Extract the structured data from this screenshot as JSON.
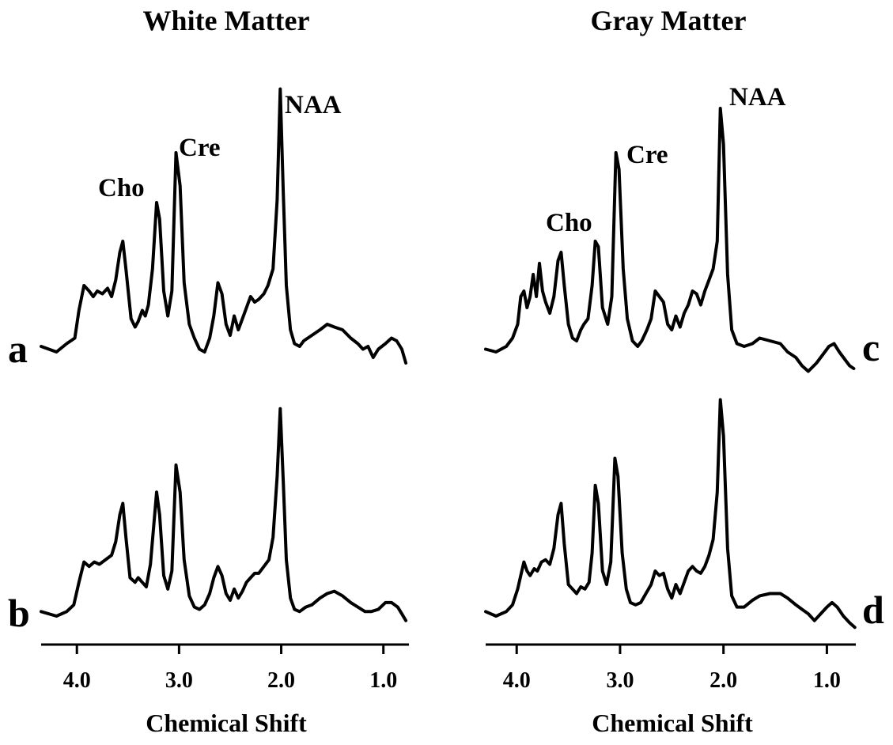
{
  "chart_data": {
    "type": "line",
    "x_reversed": true,
    "grid": false,
    "columns": [
      {
        "title": "White Matter",
        "xlabel": "Chemical Shift",
        "xlim": [
          4.35,
          0.75
        ],
        "xticks": [
          "4.0",
          "3.0",
          "2.0",
          "1.0"
        ],
        "xtick_values": [
          4.0,
          3.0,
          2.0,
          1.0
        ]
      },
      {
        "title": "Gray Matter",
        "xlabel": "Chemical Shift",
        "xlim": [
          4.3,
          0.72
        ],
        "xticks": [
          "4.0",
          "3.0",
          "2.0",
          "1.0"
        ],
        "xtick_values": [
          4.0,
          3.0,
          2.0,
          1.0
        ]
      }
    ],
    "panels": [
      {
        "letter": "a",
        "column": 0,
        "row": 0,
        "peak_labels": [
          {
            "text": "Cho",
            "x": 3.22
          },
          {
            "text": "Cre",
            "x": 3.03
          },
          {
            "text": "NAA",
            "x": 2.01
          }
        ],
        "points": [
          [
            4.35,
            0.02
          ],
          [
            4.2,
            0.0
          ],
          [
            4.1,
            0.03
          ],
          [
            4.02,
            0.05
          ],
          [
            3.98,
            0.15
          ],
          [
            3.93,
            0.24
          ],
          [
            3.88,
            0.22
          ],
          [
            3.84,
            0.2
          ],
          [
            3.8,
            0.22
          ],
          [
            3.75,
            0.21
          ],
          [
            3.7,
            0.23
          ],
          [
            3.66,
            0.2
          ],
          [
            3.62,
            0.26
          ],
          [
            3.58,
            0.36
          ],
          [
            3.55,
            0.4
          ],
          [
            3.52,
            0.3
          ],
          [
            3.47,
            0.12
          ],
          [
            3.43,
            0.09
          ],
          [
            3.4,
            0.11
          ],
          [
            3.36,
            0.15
          ],
          [
            3.33,
            0.13
          ],
          [
            3.3,
            0.17
          ],
          [
            3.26,
            0.3
          ],
          [
            3.22,
            0.54
          ],
          [
            3.19,
            0.48
          ],
          [
            3.15,
            0.22
          ],
          [
            3.11,
            0.13
          ],
          [
            3.07,
            0.22
          ],
          [
            3.03,
            0.72
          ],
          [
            2.99,
            0.6
          ],
          [
            2.95,
            0.25
          ],
          [
            2.9,
            0.1
          ],
          [
            2.85,
            0.05
          ],
          [
            2.8,
            0.01
          ],
          [
            2.75,
            0.0
          ],
          [
            2.7,
            0.05
          ],
          [
            2.66,
            0.13
          ],
          [
            2.62,
            0.25
          ],
          [
            2.58,
            0.21
          ],
          [
            2.54,
            0.1
          ],
          [
            2.5,
            0.06
          ],
          [
            2.46,
            0.13
          ],
          [
            2.42,
            0.08
          ],
          [
            2.38,
            0.12
          ],
          [
            2.33,
            0.17
          ],
          [
            2.3,
            0.2
          ],
          [
            2.26,
            0.18
          ],
          [
            2.22,
            0.19
          ],
          [
            2.17,
            0.21
          ],
          [
            2.13,
            0.24
          ],
          [
            2.08,
            0.3
          ],
          [
            2.04,
            0.55
          ],
          [
            2.01,
            0.95
          ],
          [
            1.98,
            0.58
          ],
          [
            1.95,
            0.24
          ],
          [
            1.91,
            0.08
          ],
          [
            1.87,
            0.03
          ],
          [
            1.82,
            0.02
          ],
          [
            1.78,
            0.04
          ],
          [
            1.7,
            0.06
          ],
          [
            1.62,
            0.08
          ],
          [
            1.55,
            0.1
          ],
          [
            1.48,
            0.09
          ],
          [
            1.4,
            0.08
          ],
          [
            1.32,
            0.05
          ],
          [
            1.25,
            0.03
          ],
          [
            1.2,
            0.01
          ],
          [
            1.15,
            0.02
          ],
          [
            1.1,
            -0.02
          ],
          [
            1.05,
            0.01
          ],
          [
            0.98,
            0.03
          ],
          [
            0.92,
            0.05
          ],
          [
            0.87,
            0.04
          ],
          [
            0.82,
            0.01
          ],
          [
            0.78,
            -0.04
          ]
        ]
      },
      {
        "letter": "b",
        "column": 0,
        "row": 1,
        "peak_labels": [],
        "points": [
          [
            4.35,
            0.02
          ],
          [
            4.2,
            0.0
          ],
          [
            4.1,
            0.02
          ],
          [
            4.03,
            0.05
          ],
          [
            3.98,
            0.15
          ],
          [
            3.93,
            0.24
          ],
          [
            3.88,
            0.22
          ],
          [
            3.83,
            0.24
          ],
          [
            3.78,
            0.23
          ],
          [
            3.72,
            0.25
          ],
          [
            3.66,
            0.27
          ],
          [
            3.62,
            0.33
          ],
          [
            3.58,
            0.45
          ],
          [
            3.55,
            0.5
          ],
          [
            3.52,
            0.35
          ],
          [
            3.48,
            0.17
          ],
          [
            3.43,
            0.15
          ],
          [
            3.4,
            0.17
          ],
          [
            3.36,
            0.15
          ],
          [
            3.32,
            0.13
          ],
          [
            3.28,
            0.23
          ],
          [
            3.22,
            0.55
          ],
          [
            3.19,
            0.45
          ],
          [
            3.15,
            0.18
          ],
          [
            3.11,
            0.12
          ],
          [
            3.07,
            0.2
          ],
          [
            3.03,
            0.67
          ],
          [
            2.99,
            0.55
          ],
          [
            2.95,
            0.25
          ],
          [
            2.9,
            0.09
          ],
          [
            2.85,
            0.04
          ],
          [
            2.8,
            0.03
          ],
          [
            2.75,
            0.05
          ],
          [
            2.7,
            0.1
          ],
          [
            2.66,
            0.17
          ],
          [
            2.62,
            0.22
          ],
          [
            2.58,
            0.18
          ],
          [
            2.54,
            0.1
          ],
          [
            2.5,
            0.07
          ],
          [
            2.46,
            0.12
          ],
          [
            2.42,
            0.08
          ],
          [
            2.38,
            0.11
          ],
          [
            2.34,
            0.15
          ],
          [
            2.3,
            0.17
          ],
          [
            2.26,
            0.19
          ],
          [
            2.22,
            0.19
          ],
          [
            2.17,
            0.22
          ],
          [
            2.12,
            0.25
          ],
          [
            2.08,
            0.35
          ],
          [
            2.04,
            0.62
          ],
          [
            2.01,
            0.92
          ],
          [
            1.98,
            0.6
          ],
          [
            1.95,
            0.25
          ],
          [
            1.91,
            0.08
          ],
          [
            1.87,
            0.03
          ],
          [
            1.82,
            0.02
          ],
          [
            1.76,
            0.04
          ],
          [
            1.7,
            0.05
          ],
          [
            1.62,
            0.08
          ],
          [
            1.55,
            0.1
          ],
          [
            1.48,
            0.11
          ],
          [
            1.4,
            0.09
          ],
          [
            1.32,
            0.06
          ],
          [
            1.25,
            0.04
          ],
          [
            1.18,
            0.02
          ],
          [
            1.12,
            0.02
          ],
          [
            1.05,
            0.03
          ],
          [
            0.98,
            0.06
          ],
          [
            0.92,
            0.06
          ],
          [
            0.86,
            0.04
          ],
          [
            0.82,
            0.01
          ],
          [
            0.78,
            -0.02
          ]
        ]
      },
      {
        "letter": "c",
        "column": 1,
        "row": 0,
        "peak_labels": [
          {
            "text": "Cho",
            "x": 3.22
          },
          {
            "text": "Cre",
            "x": 3.03
          },
          {
            "text": "NAA",
            "x": 2.02
          }
        ],
        "points": [
          [
            4.3,
            0.01
          ],
          [
            4.2,
            0.0
          ],
          [
            4.1,
            0.02
          ],
          [
            4.04,
            0.05
          ],
          [
            3.99,
            0.1
          ],
          [
            3.96,
            0.2
          ],
          [
            3.93,
            0.22
          ],
          [
            3.9,
            0.16
          ],
          [
            3.87,
            0.2
          ],
          [
            3.84,
            0.28
          ],
          [
            3.81,
            0.2
          ],
          [
            3.78,
            0.32
          ],
          [
            3.75,
            0.22
          ],
          [
            3.72,
            0.18
          ],
          [
            3.68,
            0.14
          ],
          [
            3.64,
            0.2
          ],
          [
            3.6,
            0.33
          ],
          [
            3.57,
            0.36
          ],
          [
            3.54,
            0.24
          ],
          [
            3.5,
            0.1
          ],
          [
            3.46,
            0.05
          ],
          [
            3.42,
            0.04
          ],
          [
            3.38,
            0.08
          ],
          [
            3.35,
            0.1
          ],
          [
            3.31,
            0.12
          ],
          [
            3.27,
            0.24
          ],
          [
            3.24,
            0.4
          ],
          [
            3.21,
            0.38
          ],
          [
            3.17,
            0.16
          ],
          [
            3.12,
            0.1
          ],
          [
            3.08,
            0.2
          ],
          [
            3.04,
            0.72
          ],
          [
            3.01,
            0.66
          ],
          [
            2.97,
            0.3
          ],
          [
            2.93,
            0.12
          ],
          [
            2.88,
            0.04
          ],
          [
            2.83,
            0.02
          ],
          [
            2.79,
            0.04
          ],
          [
            2.74,
            0.08
          ],
          [
            2.7,
            0.12
          ],
          [
            2.66,
            0.22
          ],
          [
            2.62,
            0.2
          ],
          [
            2.58,
            0.18
          ],
          [
            2.54,
            0.1
          ],
          [
            2.5,
            0.08
          ],
          [
            2.46,
            0.13
          ],
          [
            2.42,
            0.09
          ],
          [
            2.38,
            0.14
          ],
          [
            2.34,
            0.17
          ],
          [
            2.3,
            0.22
          ],
          [
            2.26,
            0.21
          ],
          [
            2.22,
            0.17
          ],
          [
            2.18,
            0.22
          ],
          [
            2.14,
            0.26
          ],
          [
            2.1,
            0.3
          ],
          [
            2.06,
            0.4
          ],
          [
            2.03,
            0.88
          ],
          [
            2.0,
            0.75
          ],
          [
            1.96,
            0.28
          ],
          [
            1.92,
            0.08
          ],
          [
            1.87,
            0.03
          ],
          [
            1.8,
            0.02
          ],
          [
            1.72,
            0.03
          ],
          [
            1.65,
            0.05
          ],
          [
            1.55,
            0.04
          ],
          [
            1.45,
            0.03
          ],
          [
            1.38,
            0.0
          ],
          [
            1.3,
            -0.02
          ],
          [
            1.24,
            -0.05
          ],
          [
            1.18,
            -0.07
          ],
          [
            1.1,
            -0.04
          ],
          [
            1.04,
            -0.01
          ],
          [
            0.98,
            0.02
          ],
          [
            0.93,
            0.03
          ],
          [
            0.88,
            0.0
          ],
          [
            0.82,
            -0.03
          ],
          [
            0.78,
            -0.05
          ],
          [
            0.74,
            -0.06
          ]
        ]
      },
      {
        "letter": "d",
        "column": 1,
        "row": 1,
        "peak_labels": [],
        "points": [
          [
            4.3,
            0.02
          ],
          [
            4.2,
            0.0
          ],
          [
            4.1,
            0.02
          ],
          [
            4.04,
            0.05
          ],
          [
            3.99,
            0.12
          ],
          [
            3.96,
            0.18
          ],
          [
            3.93,
            0.24
          ],
          [
            3.9,
            0.2
          ],
          [
            3.87,
            0.18
          ],
          [
            3.83,
            0.21
          ],
          [
            3.8,
            0.2
          ],
          [
            3.76,
            0.24
          ],
          [
            3.72,
            0.25
          ],
          [
            3.68,
            0.23
          ],
          [
            3.64,
            0.3
          ],
          [
            3.6,
            0.45
          ],
          [
            3.57,
            0.5
          ],
          [
            3.54,
            0.32
          ],
          [
            3.5,
            0.14
          ],
          [
            3.46,
            0.12
          ],
          [
            3.42,
            0.1
          ],
          [
            3.38,
            0.13
          ],
          [
            3.34,
            0.12
          ],
          [
            3.3,
            0.15
          ],
          [
            3.27,
            0.28
          ],
          [
            3.24,
            0.58
          ],
          [
            3.21,
            0.5
          ],
          [
            3.17,
            0.2
          ],
          [
            3.13,
            0.14
          ],
          [
            3.09,
            0.24
          ],
          [
            3.05,
            0.7
          ],
          [
            3.02,
            0.62
          ],
          [
            2.98,
            0.28
          ],
          [
            2.94,
            0.12
          ],
          [
            2.9,
            0.06
          ],
          [
            2.85,
            0.05
          ],
          [
            2.8,
            0.06
          ],
          [
            2.75,
            0.1
          ],
          [
            2.7,
            0.14
          ],
          [
            2.66,
            0.2
          ],
          [
            2.62,
            0.18
          ],
          [
            2.58,
            0.19
          ],
          [
            2.54,
            0.12
          ],
          [
            2.5,
            0.08
          ],
          [
            2.46,
            0.14
          ],
          [
            2.42,
            0.1
          ],
          [
            2.38,
            0.15
          ],
          [
            2.34,
            0.2
          ],
          [
            2.3,
            0.22
          ],
          [
            2.26,
            0.2
          ],
          [
            2.22,
            0.19
          ],
          [
            2.18,
            0.22
          ],
          [
            2.14,
            0.27
          ],
          [
            2.1,
            0.34
          ],
          [
            2.06,
            0.55
          ],
          [
            2.03,
            0.96
          ],
          [
            2.0,
            0.8
          ],
          [
            1.96,
            0.3
          ],
          [
            1.92,
            0.09
          ],
          [
            1.87,
            0.04
          ],
          [
            1.8,
            0.04
          ],
          [
            1.72,
            0.07
          ],
          [
            1.65,
            0.09
          ],
          [
            1.55,
            0.1
          ],
          [
            1.45,
            0.1
          ],
          [
            1.38,
            0.08
          ],
          [
            1.3,
            0.05
          ],
          [
            1.24,
            0.03
          ],
          [
            1.18,
            0.01
          ],
          [
            1.12,
            -0.02
          ],
          [
            1.06,
            0.01
          ],
          [
            1.0,
            0.04
          ],
          [
            0.95,
            0.06
          ],
          [
            0.9,
            0.04
          ],
          [
            0.84,
            0.0
          ],
          [
            0.78,
            -0.03
          ],
          [
            0.73,
            -0.05
          ]
        ]
      }
    ]
  }
}
